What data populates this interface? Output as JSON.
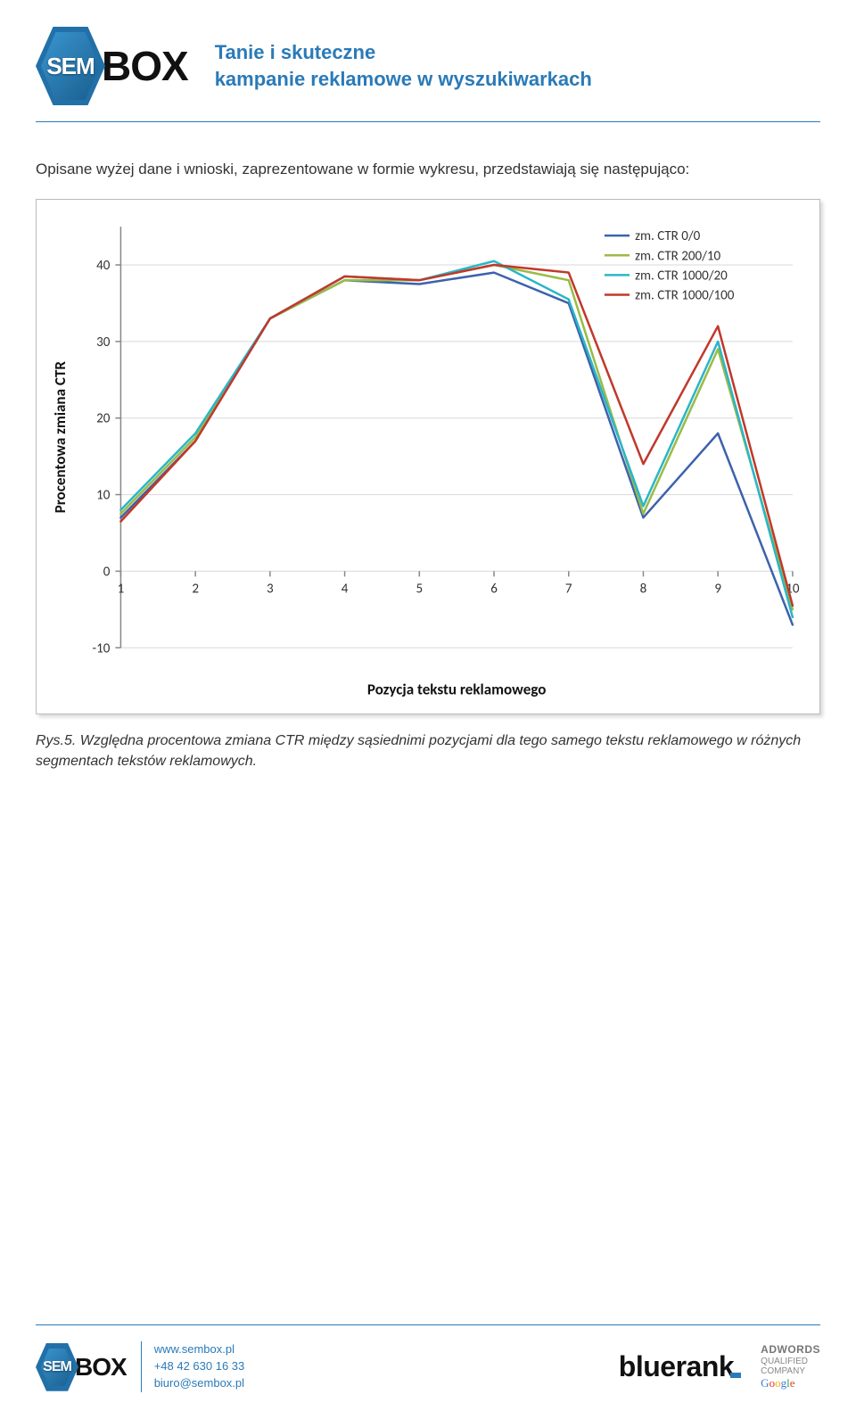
{
  "header": {
    "logo_sem": "SEM",
    "logo_box": "BOX",
    "tagline_line1": "Tanie i skuteczne",
    "tagline_line2": "kampanie reklamowe w wyszukiwarkach"
  },
  "intro_text": "Opisane wyżej dane i wnioski, zaprezentowane w formie wykresu, przedstawiają się następująco:",
  "chart": {
    "type": "line",
    "x_label": "Pozycja tekstu reklamowego",
    "y_label": "Procentowa zmiana CTR",
    "xlim": [
      1,
      10
    ],
    "ylim": [
      -10,
      45
    ],
    "x_ticks": [
      1,
      2,
      3,
      4,
      5,
      6,
      7,
      8,
      9,
      10
    ],
    "y_ticks": [
      -10,
      0,
      10,
      20,
      30,
      40
    ],
    "background_color": "#ffffff",
    "grid_color": "#d9d9d9",
    "axis_color": "#888888",
    "tick_fontsize": 15,
    "label_fontsize": 17,
    "label_fontweight": "bold",
    "line_width": 2.5,
    "legend": {
      "position": "top-right",
      "fontsize": 15,
      "items": [
        {
          "label": "zm. CTR 0/0",
          "color": "#3d62ac"
        },
        {
          "label": "zm. CTR 200/10",
          "color": "#9bbb46"
        },
        {
          "label": "zm. CTR 1000/20",
          "color": "#2bb6c7"
        },
        {
          "label": "zm. CTR 1000/100",
          "color": "#c0392b"
        }
      ]
    },
    "series": [
      {
        "name": "zm. CTR 0/0",
        "color": "#3d62ac",
        "values": [
          7,
          17,
          33,
          38,
          37.5,
          39,
          35,
          7,
          18,
          -7
        ]
      },
      {
        "name": "zm. CTR 200/10",
        "color": "#9bbb46",
        "values": [
          7.5,
          17.5,
          33,
          38,
          38,
          40,
          38,
          7.5,
          29,
          -5
        ]
      },
      {
        "name": "zm. CTR 1000/20",
        "color": "#2bb6c7",
        "values": [
          8,
          18,
          33,
          38.5,
          38,
          40.5,
          35.5,
          8.5,
          30,
          -6
        ]
      },
      {
        "name": "zm. CTR 1000/100",
        "color": "#c0392b",
        "values": [
          6.5,
          17,
          33,
          38.5,
          38,
          40,
          39,
          14,
          32,
          -4.5
        ]
      }
    ]
  },
  "caption": "Rys.5. Względna procentowa zmiana CTR między sąsiednimi pozycjami dla tego samego tekstu reklamowego w różnych segmentach tekstów reklamowych.",
  "footer": {
    "logo_sem": "SEM",
    "logo_box": "BOX",
    "contact_web": "www.sembox.pl",
    "contact_phone": "+48 42 630 16 33",
    "contact_email": "biuro@sembox.pl",
    "partner": "bluerank",
    "adwords_l1": "ADWORDS",
    "adwords_l2": "QUALIFIED",
    "adwords_l3": "COMPANY"
  }
}
